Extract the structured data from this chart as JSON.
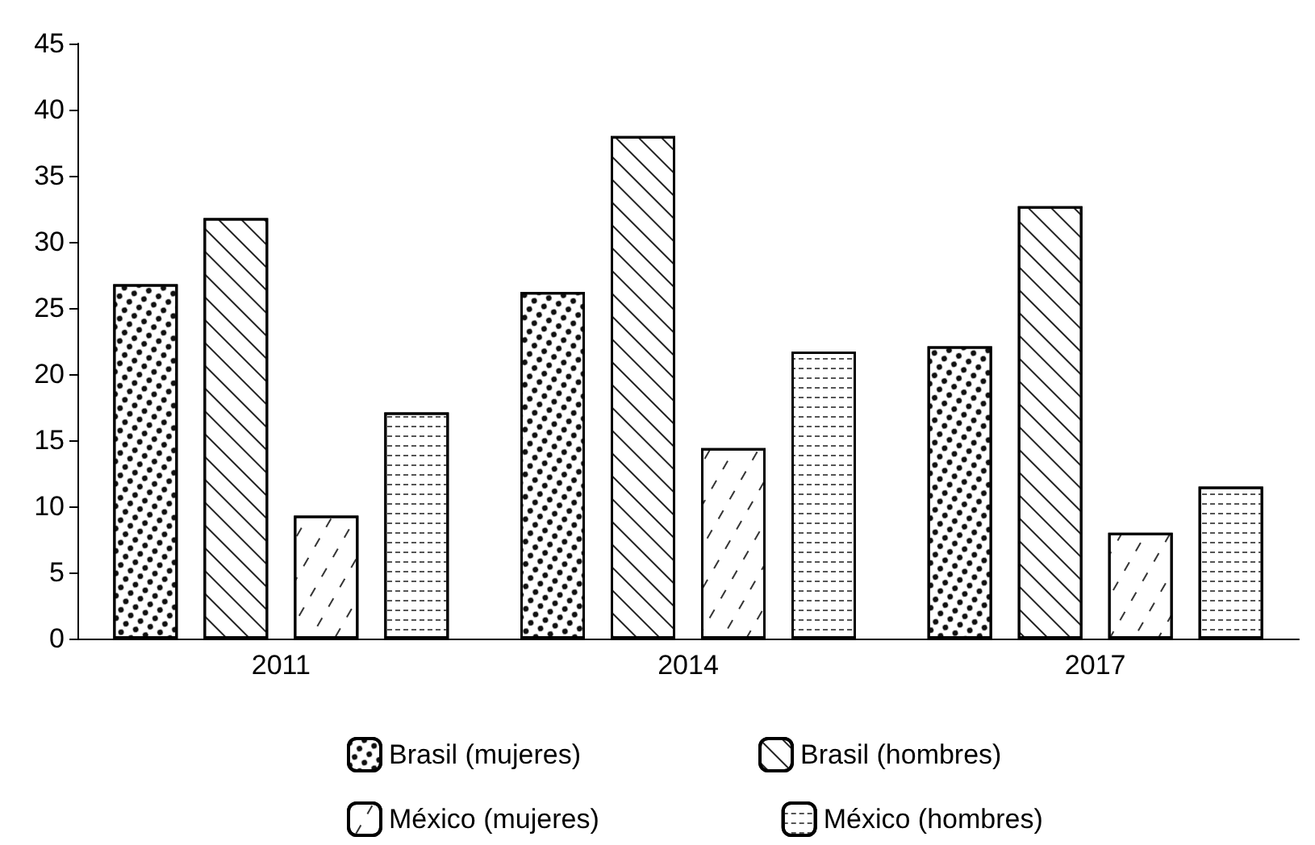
{
  "chart_data": {
    "type": "bar",
    "categories": [
      "2011",
      "2014",
      "2017"
    ],
    "series": [
      {
        "name": "Brasil (mujeres)",
        "color": "#ffffff",
        "values": [
          26.8,
          26.2,
          22.1
        ]
      },
      {
        "name": "Brasil (hombres)",
        "color": "#ffffff",
        "values": [
          31.8,
          38.0,
          32.7
        ]
      },
      {
        "name": "México (mujeres)",
        "color": "#ffffff",
        "values": [
          9.3,
          14.4,
          8.0
        ]
      },
      {
        "name": "México (hombres)",
        "color": "#ffffff",
        "values": [
          17.1,
          21.7,
          11.5
        ]
      }
    ],
    "ylim": [
      0,
      45
    ],
    "yticks": [
      0,
      5,
      10,
      15,
      20,
      25,
      30,
      35,
      40,
      45
    ],
    "grid": false,
    "legend": "bottom"
  }
}
